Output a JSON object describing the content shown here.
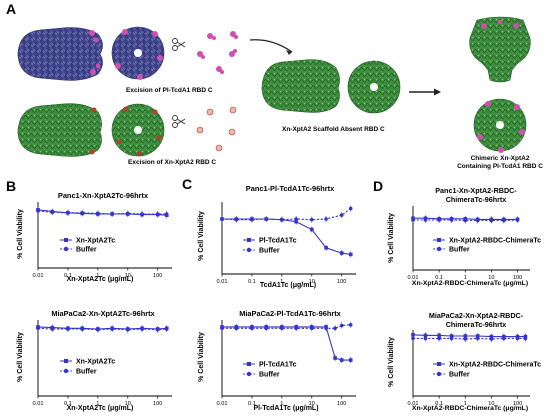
{
  "panels": {
    "A": "A",
    "B": "B",
    "C": "C",
    "D": "D"
  },
  "schematic": {
    "caption_pl": "Excision of Pl-TcdA1 RBD C",
    "caption_xn": "Excision of Xn-XptA2 RBD C",
    "caption_scaffold": "Xn-XptA2 Scaffold Absent RBD C",
    "caption_chimeric_1": "Chimeric Xn-XptA2",
    "caption_chimeric_2": "Containing Pl-TcdA1 RBD C",
    "colors": {
      "pl_body": "#5b5fa8",
      "pl_rbd": "#d04fb0",
      "xn_body": "#3f8f3f",
      "xn_rbd": "#b3402a",
      "scissor": "scissors-icon",
      "arrow": "arrow-icon"
    }
  },
  "charts": {
    "b_top": {
      "title": "Panc1-Xn-XptA2Tc-96hrtx",
      "xlabel": "Xn-XptA2Tc (μg/mL)",
      "ylabel": "% Cell  Viability",
      "legend": [
        "Xn-XptA2Tc",
        "Buffer"
      ]
    },
    "b_bot": {
      "title": "MiaPaCa2-Xn-XptA2Tc-96hrtx",
      "xlabel": "Xn-XptA2Tc (μg/mL)",
      "ylabel": "% Cell  Viability",
      "legend": [
        "Xn-XptA2Tc",
        "Buffer"
      ]
    },
    "c_top": {
      "title": "Panc1-Pl-TcdA1Tc-96hrtx",
      "xlabel": "TcdA1Tc (μg/mL)",
      "ylabel": "% Cell  Viability",
      "legend": [
        "Pl-TcdA1Tc",
        "Buffer"
      ]
    },
    "c_bot": {
      "title": "MiaPaCa2-Pl-TcdA1Tc-96hrtx",
      "xlabel": "Pl-TcdA1Tc (μg/mL)",
      "ylabel": "% Cell  Viability",
      "legend": [
        "Pl-TcdA1Tc",
        "Buffer"
      ]
    },
    "d_top": {
      "title_1": "Panc1-Xn-XptA2-RBDC-",
      "title_2": "ChimeraTc-96hrtx",
      "xlabel": "Xn-XptA2-RBDC-ChimeraTc (μg/mL)",
      "ylabel": "% Cell  Viability",
      "legend": [
        "Xn-XptA2-RBDC-ChimeraTc",
        "Buffer"
      ]
    },
    "d_bot": {
      "title_1": "MiaPaCa2-Xn-XptA2-RBDC-",
      "title_2": "ChimeraTc-96hrtx",
      "xlabel": "Xn-XptA2-RBDC-ChimeraTc (μg/mL)",
      "ylabel": "% Cell  Viability",
      "legend": [
        "Xn-XptA2-RBDC-ChimeraTc",
        "Buffer"
      ]
    },
    "xticks": [
      "0.01",
      "0.1",
      "1",
      "10",
      "100"
    ]
  },
  "chart_data": [
    {
      "type": "scatter",
      "title": "Panc1-Xn-XptA2Tc-96hrtx",
      "xscale": "log",
      "xlabel": "Xn-XptA2Tc (μg/mL)",
      "ylabel": "% Cell  Viability",
      "x": [
        0.01,
        0.03,
        0.1,
        0.3,
        1,
        3,
        10,
        30,
        100,
        200
      ],
      "series": [
        {
          "name": "Xn-XptA2Tc",
          "values": [
            97,
            94,
            92,
            91,
            90,
            90,
            90,
            89,
            89,
            88
          ]
        },
        {
          "name": "Buffer",
          "values": [
            95,
            93,
            92,
            92,
            91,
            90,
            91,
            90,
            90,
            90
          ]
        }
      ],
      "legend": "inside-left"
    },
    {
      "type": "scatter",
      "title": "MiaPaCa2-Xn-XptA2Tc-96hrtx",
      "xscale": "log",
      "xlabel": "Xn-XptA2Tc (μg/mL)",
      "ylabel": "% Cell  Viability",
      "x": [
        0.01,
        0.03,
        0.1,
        0.3,
        1,
        3,
        10,
        30,
        100,
        200
      ],
      "series": [
        {
          "name": "Xn-XptA2Tc",
          "values": [
            100,
            99,
            98,
            98,
            97,
            98,
            97,
            98,
            97,
            98
          ]
        },
        {
          "name": "Buffer",
          "values": [
            98,
            97,
            97,
            97,
            96,
            97,
            96,
            97,
            96,
            97
          ]
        }
      ],
      "legend": "inside-left"
    },
    {
      "type": "scatter",
      "title": "Panc1-Pl-TcdA1Tc-96hrtx",
      "xscale": "log",
      "xlabel": "TcdA1Tc (μg/mL)",
      "ylabel": "% Cell  Viability",
      "x": [
        0.01,
        0.03,
        0.1,
        0.3,
        1,
        3,
        10,
        30,
        100,
        200
      ],
      "series": [
        {
          "name": "Pl-TcdA1Tc",
          "values": [
            84,
            84,
            84,
            84,
            83,
            80,
            68,
            40,
            32,
            30
          ]
        },
        {
          "name": "Buffer",
          "values": [
            84,
            83,
            83,
            84,
            83,
            84,
            83,
            84,
            90,
            100
          ]
        }
      ],
      "legend": "inside-left"
    },
    {
      "type": "scatter",
      "title": "MiaPaCa2-Pl-TcdA1Tc-96hrtx",
      "xscale": "log",
      "xlabel": "Pl-TcdA1Tc (μg/mL)",
      "ylabel": "% Cell  Viability",
      "x": [
        0.01,
        0.03,
        0.1,
        0.3,
        1,
        3,
        10,
        30,
        60,
        100,
        200
      ],
      "series": [
        {
          "name": "Pl-TcdA1Tc",
          "values": [
            100,
            100,
            100,
            100,
            100,
            100,
            100,
            100,
            55,
            52,
            52
          ]
        },
        {
          "name": "Buffer",
          "values": [
            98,
            98,
            98,
            98,
            98,
            98,
            98,
            98,
            98,
            102,
            103
          ]
        }
      ],
      "legend": "inside-left"
    },
    {
      "type": "scatter",
      "title": "Panc1-Xn-XptA2-RBDC-ChimeraTc-96hrtx",
      "xscale": "log",
      "xlabel": "Xn-XptA2-RBDC-ChimeraTc (μg/mL)",
      "ylabel": "% Cell  Viability",
      "x": [
        0.01,
        0.03,
        0.1,
        0.3,
        1,
        3,
        10,
        30,
        100
      ],
      "series": [
        {
          "name": "Xn-XptA2-RBDC-ChimeraTc",
          "values": [
            89,
            89,
            88,
            88,
            88,
            87,
            87,
            87,
            87
          ]
        },
        {
          "name": "Buffer",
          "values": [
            86,
            86,
            86,
            86,
            85,
            85,
            85,
            85,
            86
          ]
        }
      ],
      "legend": "inside-left"
    },
    {
      "type": "scatter",
      "title": "MiaPaCa2-Xn-XptA2-RBDC-ChimeraTc-96hrtx",
      "xscale": "log",
      "xlabel": "Xn-XptA2-RBDC-ChimeraTc (μg/mL)",
      "ylabel": "% Cell  Viability",
      "x": [
        0.01,
        0.03,
        0.1,
        0.3,
        1,
        3,
        10,
        30,
        100,
        200
      ],
      "series": [
        {
          "name": "Xn-XptA2-RBDC-ChimeraTc",
          "values": [
            102,
            101,
            101,
            100,
            100,
            100,
            99,
            99,
            99,
            99
          ]
        },
        {
          "name": "Buffer",
          "values": [
            96,
            96,
            96,
            96,
            95,
            96,
            95,
            96,
            96,
            96
          ]
        }
      ],
      "legend": "inside-left"
    }
  ]
}
